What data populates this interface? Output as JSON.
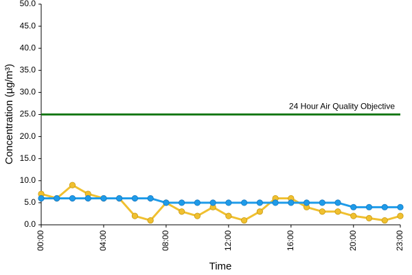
{
  "chart_data": {
    "type": "line",
    "xlabel": "Time",
    "ylabel": "Concentration (µg/m³)",
    "ylim": [
      0,
      50
    ],
    "y_ticks": [
      "0.0",
      "5.0",
      "10.0",
      "15.0",
      "20.0",
      "25.0",
      "30.0",
      "35.0",
      "40.0",
      "45.0",
      "50.0"
    ],
    "x": [
      0,
      1,
      2,
      3,
      4,
      5,
      6,
      7,
      8,
      9,
      10,
      11,
      12,
      13,
      14,
      15,
      16,
      17,
      18,
      19,
      20,
      21,
      22,
      23
    ],
    "x_tick_labels": [
      {
        "x": 0,
        "label": "00:00"
      },
      {
        "x": 4,
        "label": "04:00"
      },
      {
        "x": 8,
        "label": "08:00"
      },
      {
        "x": 12,
        "label": "12:00"
      },
      {
        "x": 16,
        "label": "16:00"
      },
      {
        "x": 20,
        "label": "20:00"
      },
      {
        "x": 23,
        "label": "23:00"
      }
    ],
    "grid": false,
    "legend": "none",
    "reference_line": {
      "value": 25,
      "label": "24 Hour Air Quality Objective",
      "color": "#1a7a1a"
    },
    "series": [
      {
        "color": "#f0c030",
        "values": [
          7,
          6,
          9,
          7,
          6,
          6,
          2,
          1,
          5,
          3,
          2,
          4,
          2,
          1,
          3,
          6,
          6,
          4,
          3,
          3,
          2,
          1.5,
          1,
          2
        ]
      },
      {
        "color": "#1e9be9",
        "values": [
          6,
          6,
          6,
          6,
          6,
          6,
          6,
          6,
          5,
          5,
          5,
          5,
          5,
          5,
          5,
          5,
          5,
          5,
          5,
          5,
          4,
          4,
          4,
          4
        ]
      }
    ]
  }
}
